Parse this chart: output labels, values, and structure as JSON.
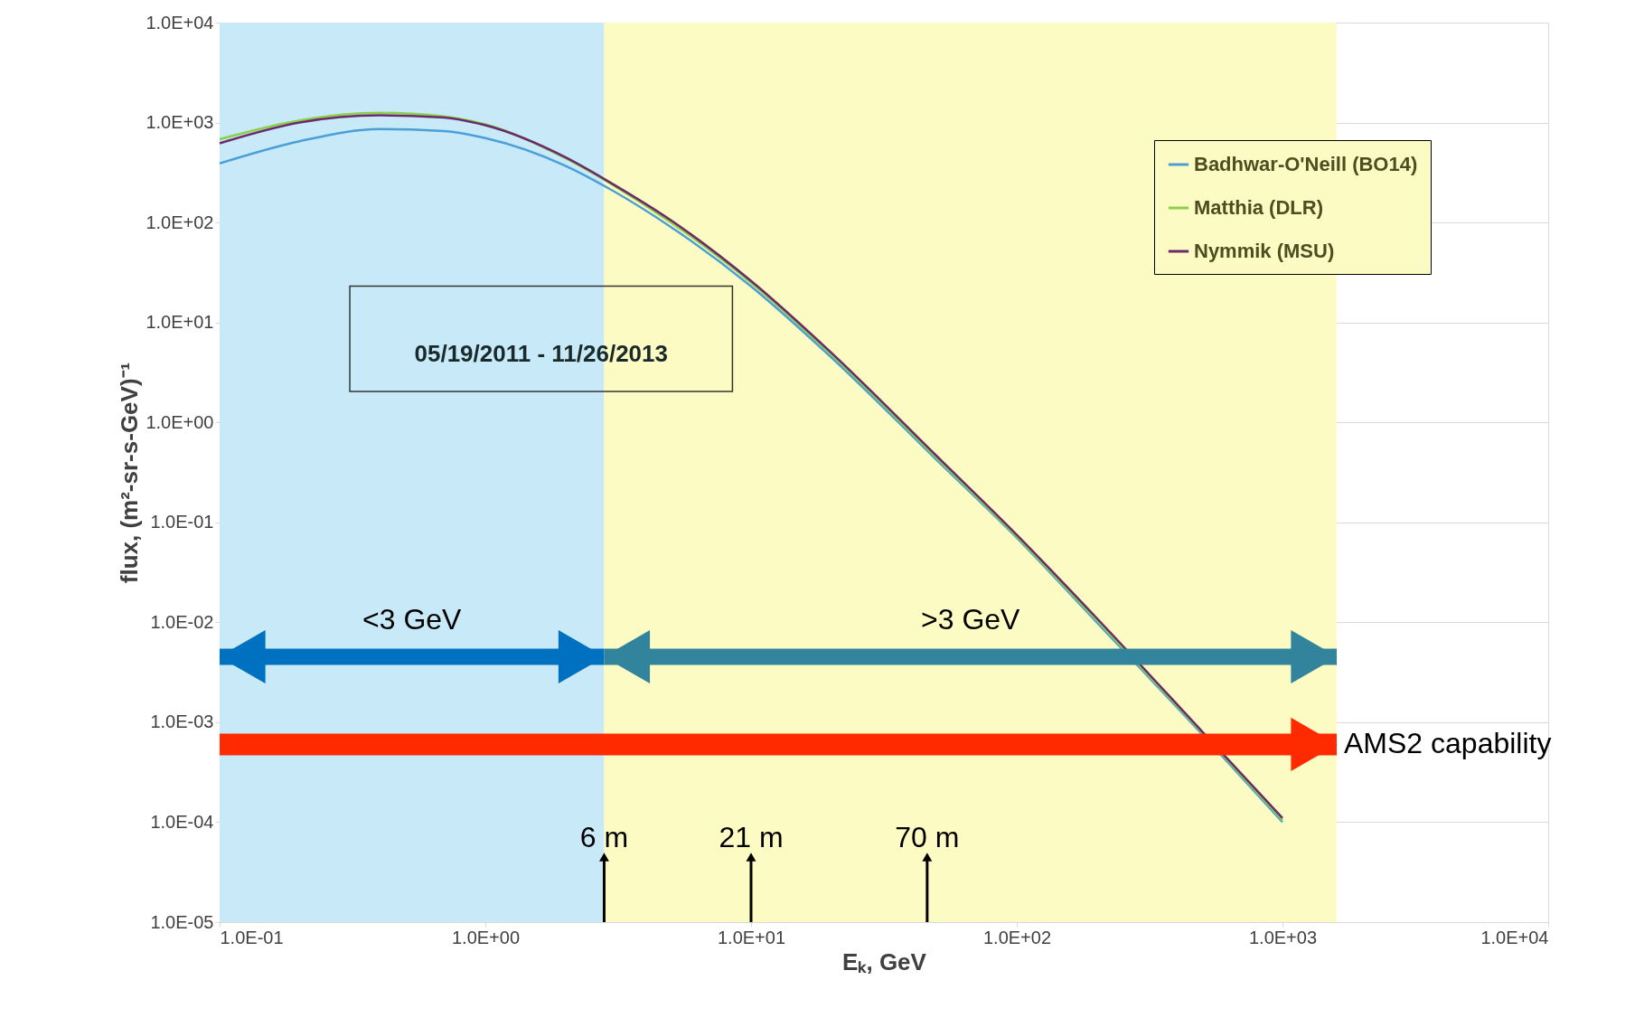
{
  "chart_data": {
    "type": "line",
    "xlabel": "Eₖ, GeV",
    "ylabel": "flux, (m²-sr-s-GeV)⁻¹",
    "x": [
      0.1,
      0.2,
      0.4,
      0.7,
      1,
      2,
      3,
      5,
      10,
      20,
      50,
      100,
      200,
      500,
      1000
    ],
    "series": [
      {
        "name": "Badhwar-O'Neill (BO14)",
        "color": "#4a9fd8",
        "values": [
          390,
          650,
          860,
          820,
          700,
          370,
          210,
          90,
          23,
          4.5,
          0.42,
          0.07,
          0.01,
          0.00075,
          0.0001
        ]
      },
      {
        "name": "Matthia (DLR)",
        "color": "#8cd04a",
        "values": [
          680,
          1050,
          1250,
          1150,
          960,
          440,
          240,
          100,
          25,
          4.8,
          0.44,
          0.072,
          0.0105,
          0.00078,
          0.000105
        ]
      },
      {
        "name": "Nymmik (MSU)",
        "color": "#6b2a6b",
        "values": [
          620,
          1000,
          1180,
          1120,
          940,
          450,
          245,
          105,
          26,
          5,
          0.46,
          0.075,
          0.011,
          0.0008,
          0.00011
        ]
      }
    ],
    "log": "xy",
    "grid": true,
    "legend": "top right",
    "xlim": [
      0.1,
      10000
    ],
    "ylim": [
      1e-05,
      10000
    ],
    "xticks": [
      {
        "value": 0.1,
        "label": "1.0E-01"
      },
      {
        "value": 1,
        "label": "1.0E+00"
      },
      {
        "value": 10,
        "label": "1.0E+01"
      },
      {
        "value": 100,
        "label": "1.0E+02"
      },
      {
        "value": 1000,
        "label": "1.0E+03"
      },
      {
        "value": 10000,
        "label": "1.0E+04"
      }
    ],
    "yticks": [
      {
        "value": 1e-05,
        "label": "1.0E-05"
      },
      {
        "value": 0.0001,
        "label": "1.0E-04"
      },
      {
        "value": 0.001,
        "label": "1.0E-03"
      },
      {
        "value": 0.01,
        "label": "1.0E-02"
      },
      {
        "value": 0.1,
        "label": "1.0E-01"
      },
      {
        "value": 1,
        "label": "1.0E+00"
      },
      {
        "value": 10,
        "label": "1.0E+01"
      },
      {
        "value": 100,
        "label": "1.0E+02"
      },
      {
        "value": 1000,
        "label": "1.0E+03"
      },
      {
        "value": 10000,
        "label": "1.0E+04"
      }
    ],
    "bands": [
      {
        "axis": "x",
        "from": 0.1,
        "to": 2.8,
        "label": "<3 GeV",
        "color": "#c8eaf8"
      },
      {
        "axis": "x",
        "from": 2.8,
        "to": 1600,
        "label": ">3 GeV",
        "color": "#fdfbc4"
      }
    ],
    "ref_lines": [
      {
        "axis": "x",
        "value": 2.8,
        "label": "6 m"
      },
      {
        "axis": "x",
        "value": 10,
        "label": "21 m"
      },
      {
        "axis": "x",
        "value": 46,
        "label": "70 m"
      }
    ],
    "annotations": [
      "05/19/2011 - 11/26/2013",
      {
        "text": "AMS2 capability",
        "x": 1600,
        "y": 0.0006
      }
    ]
  }
}
